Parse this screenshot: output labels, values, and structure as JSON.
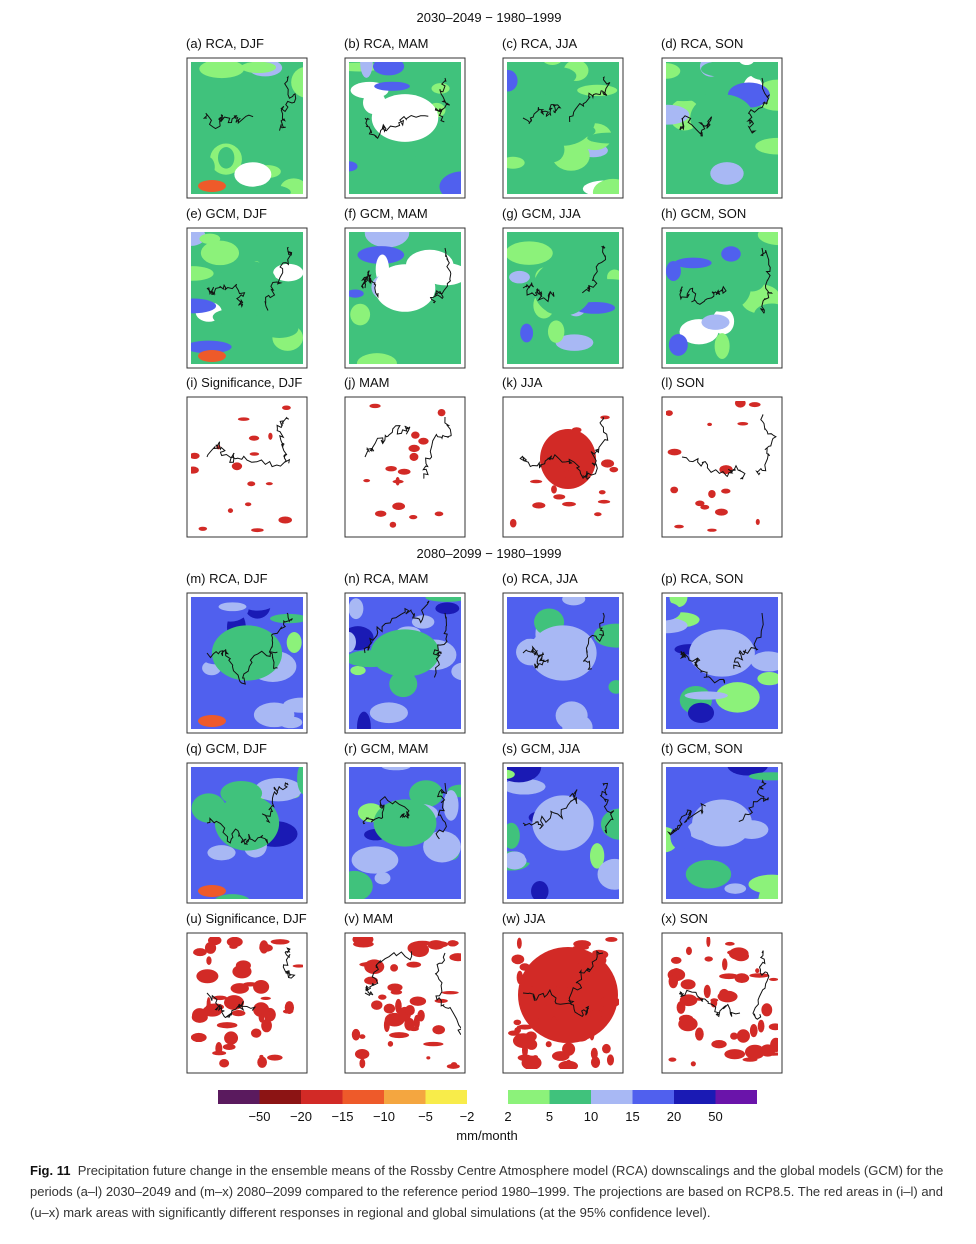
{
  "header_titles": [
    "2030–2049 − 1980–1999",
    "2080–2099 − 1980–1999"
  ],
  "panels": [
    "(a) RCA, DJF",
    "(b) RCA, MAM",
    "(c) RCA, JJA",
    "(d) RCA, SON",
    "(e) GCM, DJF",
    "(f) GCM, MAM",
    "(g) GCM, JJA",
    "(h) GCM, SON",
    "(i) Significance, DJF",
    "(j) MAM",
    "(k) JJA",
    "(l) SON",
    "(m) RCA, DJF",
    "(n) RCA, MAM",
    "(o) RCA, JJA",
    "(p) RCA, SON",
    "(q) GCM, DJF",
    "(r) GCM, MAM",
    "(s) GCM, JJA",
    "(t) GCM, SON",
    "(u) Significance, DJF",
    "(v) MAM",
    "(w) JJA",
    "(x) SON"
  ],
  "colorbar": {
    "colors": [
      "#5a1a5e",
      "#8c1414",
      "#d22a26",
      "#ee5a2a",
      "#f4a640",
      "#f8ec4a",
      "#8cf27a",
      "#40c27c",
      "#a8b8f4",
      "#5060ee",
      "#1a1ab4",
      "#6a14aa"
    ],
    "tick_labels": [
      "−50",
      "−20",
      "−15",
      "−10",
      "−5",
      "−2",
      "2",
      "5",
      "10",
      "15",
      "20",
      "50"
    ],
    "unit": "mm/month"
  },
  "caption": {
    "label": "Fig. 11",
    "text": "Precipitation future change in the ensemble means of the Rossby Centre Atmosphere model (RCA) downscalings and the global models (GCM) for the periods (a–l) 2030–2049 and (m–x) 2080–2099 compared to the reference period 1980–1999. The projections are based on RCP8.5. The red areas in (i–l) and (u–x) mark areas with significantly different responses in regional and global simulations (at the 95% confidence level)."
  }
}
